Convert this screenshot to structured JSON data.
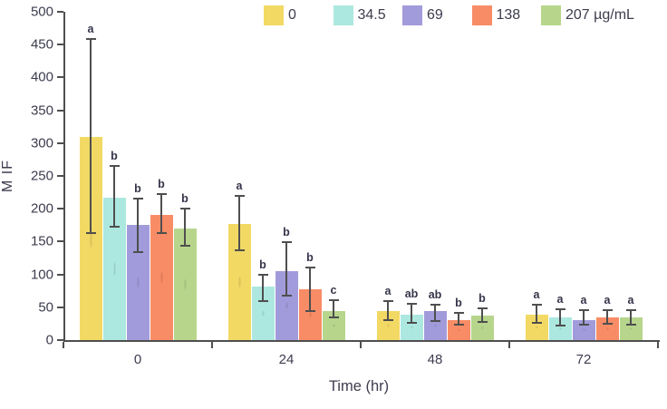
{
  "chart_data": {
    "type": "bar",
    "title": "",
    "xlabel": "Time (hr)",
    "ylabel": "M IF",
    "ylim": [
      0,
      500
    ],
    "ytick_step": 50,
    "grid": false,
    "legend_position": "top",
    "categories": [
      "0",
      "24",
      "48",
      "72"
    ],
    "series": [
      {
        "name": "0",
        "color": "#F2D964",
        "values": [
          310,
          177,
          44,
          39
        ],
        "err_low": [
          163,
          137,
          30,
          26
        ],
        "err_high": [
          459,
          220,
          60,
          54
        ],
        "letters": [
          "a",
          "a",
          "a",
          "a"
        ]
      },
      {
        "name": "34.5",
        "color": "#ACE8DF",
        "values": [
          217,
          82,
          39,
          34
        ],
        "err_low": [
          172,
          60,
          26,
          22
        ],
        "err_high": [
          265,
          100,
          55,
          47
        ],
        "letters": [
          "b",
          "b",
          "ab",
          "a"
        ]
      },
      {
        "name": "69",
        "color": "#A29BDB",
        "values": [
          175,
          105,
          44,
          31
        ],
        "err_low": [
          134,
          67,
          29,
          23
        ],
        "err_high": [
          216,
          149,
          54,
          45
        ],
        "letters": [
          "b",
          "b",
          "ab",
          "a"
        ]
      },
      {
        "name": "138",
        "color": "#F88C66",
        "values": [
          191,
          77,
          31,
          34
        ],
        "err_low": [
          163,
          44,
          24,
          25
        ],
        "err_high": [
          222,
          110,
          41,
          46
        ],
        "letters": [
          "b",
          "b",
          "b",
          "a"
        ]
      },
      {
        "name": "207 µg/mL",
        "color": "#B7D68C",
        "values": [
          170,
          44,
          37,
          34
        ],
        "err_low": [
          143,
          34,
          28,
          23
        ],
        "err_high": [
          200,
          61,
          49,
          45
        ],
        "letters": [
          "b",
          "c",
          "b",
          "a"
        ]
      }
    ],
    "colors": {
      "axis": "#4f4f4f",
      "error_bar": "#4f4f4f",
      "text": "#3c3c4e",
      "background": "#ffffff"
    }
  }
}
